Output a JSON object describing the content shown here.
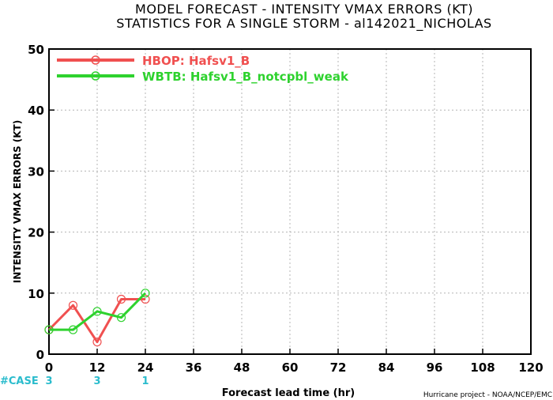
{
  "title_line1": "MODEL FORECAST - INTENSITY VMAX ERRORS (KT)",
  "title_line2": "STATISTICS FOR A SINGLE STORM - al142021_NICHOLAS",
  "credit": "Hurricane project - NOAA/NCEP/EMC",
  "case_label": "#CASE",
  "colors": {
    "case": "#2bbccd",
    "grid": "#b4b4b4"
  },
  "chart_data": {
    "type": "line",
    "xlabel": "Forecast lead time (hr)",
    "ylabel": "INTENSITY VMAX ERRORS (KT)",
    "xlim": [
      0,
      120
    ],
    "ylim": [
      0,
      50
    ],
    "x_ticks": [
      0,
      12,
      24,
      36,
      48,
      60,
      72,
      84,
      96,
      108,
      120
    ],
    "y_ticks": [
      0,
      10,
      20,
      30,
      40,
      50
    ],
    "grid": true,
    "legend_position": "top-left",
    "series": [
      {
        "name": "HBOP: Hafsv1_B",
        "color": "#f05050",
        "x": [
          0,
          6,
          12,
          18,
          24
        ],
        "values": [
          4,
          8,
          2,
          9,
          9
        ]
      },
      {
        "name": "WBTB: Hafsv1_B_notcpbl_weak",
        "color": "#2ed22e",
        "x": [
          0,
          6,
          12,
          18,
          24
        ],
        "values": [
          4,
          4,
          7,
          6,
          10
        ]
      }
    ],
    "cases": [
      {
        "x": 0,
        "label": "3"
      },
      {
        "x": 12,
        "label": "3"
      },
      {
        "x": 24,
        "label": "1"
      }
    ]
  }
}
